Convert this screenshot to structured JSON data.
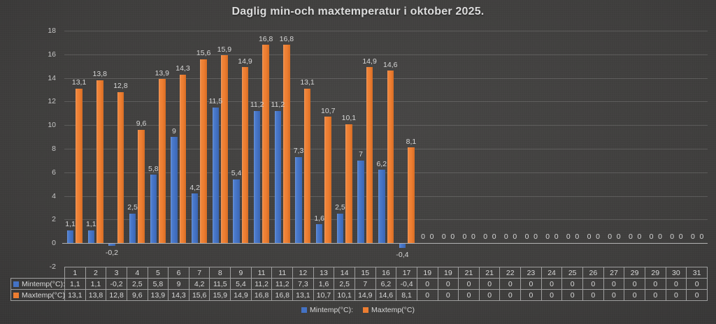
{
  "chart_data": {
    "type": "bar",
    "title": "Daglig min-och maxtemperatur i oktober 2025.",
    "categories": [
      "1",
      "2",
      "3",
      "4",
      "5",
      "6",
      "7",
      "8",
      "9",
      "11",
      "11",
      "12",
      "13",
      "14",
      "15",
      "16",
      "17",
      "19",
      "19",
      "21",
      "21",
      "22",
      "23",
      "24",
      "25",
      "26",
      "27",
      "29",
      "29",
      "30",
      "31"
    ],
    "series": [
      {
        "name": "Mintemp(°C):",
        "key": "mintemp",
        "color": "#4472C4",
        "values": [
          1.1,
          1.1,
          -0.2,
          2.5,
          5.8,
          9,
          4.2,
          11.5,
          5.4,
          11.2,
          11.2,
          7.3,
          1.6,
          2.5,
          7,
          6.2,
          -0.4,
          0,
          0,
          0,
          0,
          0,
          0,
          0,
          0,
          0,
          0,
          0,
          0,
          0,
          0
        ]
      },
      {
        "name": "Maxtemp(°C)",
        "key": "maxtemp",
        "color": "#ED7D31",
        "values": [
          13.1,
          13.8,
          12.8,
          9.6,
          13.9,
          14.3,
          15.6,
          15.9,
          14.9,
          16.8,
          16.8,
          13.1,
          10.7,
          10.1,
          14.9,
          14.6,
          8.1,
          0,
          0,
          0,
          0,
          0,
          0,
          0,
          0,
          0,
          0,
          0,
          0,
          0,
          0
        ]
      }
    ],
    "xlabel": "",
    "ylabel": "",
    "ylim": [
      -2,
      18
    ],
    "yticks": [
      18,
      16,
      14,
      12,
      10,
      8,
      6,
      4,
      2,
      0,
      -2
    ],
    "grid": true,
    "legend_position": "bottom",
    "data_table_visible": true,
    "decimal_separator": ","
  },
  "colors": {
    "min_bar": "#4472C4",
    "max_bar": "#ED7D31",
    "background": "#3a3939",
    "gridline": "#5f5f5f",
    "axis_line": "#B2B2B2",
    "text": "#D9D9D9",
    "table_border": "#9E9E9E"
  }
}
